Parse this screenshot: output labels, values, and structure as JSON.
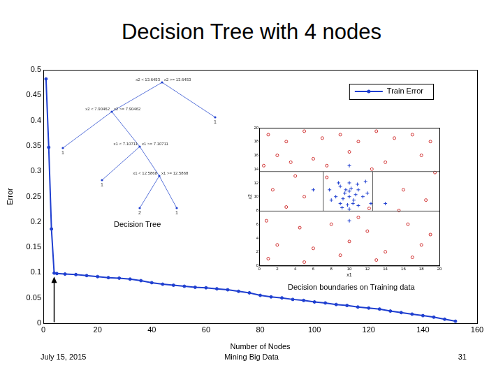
{
  "slide": {
    "title": "Decision Tree with 4 nodes",
    "footer": {
      "date": "July 15, 2015",
      "center": "Mining Big Data",
      "page": "31"
    }
  },
  "chart_data": [
    {
      "type": "line",
      "x_label": "Number of Nodes",
      "y_label": "Error",
      "x": [
        1,
        2,
        3,
        4,
        5,
        8,
        12,
        16,
        20,
        24,
        28,
        32,
        36,
        40,
        44,
        48,
        52,
        56,
        60,
        64,
        68,
        72,
        76,
        80,
        84,
        88,
        92,
        96,
        100,
        104,
        108,
        112,
        116,
        120,
        124,
        128,
        132,
        136,
        140,
        144,
        148,
        152
      ],
      "series": [
        {
          "name": "Train Error",
          "color": "#1f3fd0",
          "marker": "circle",
          "line_style": "solid",
          "values": [
            0.482,
            0.347,
            0.186,
            0.099,
            0.098,
            0.097,
            0.096,
            0.094,
            0.092,
            0.09,
            0.089,
            0.087,
            0.084,
            0.08,
            0.077,
            0.075,
            0.073,
            0.071,
            0.07,
            0.068,
            0.066,
            0.063,
            0.06,
            0.055,
            0.052,
            0.05,
            0.047,
            0.045,
            0.042,
            0.04,
            0.037,
            0.035,
            0.032,
            0.03,
            0.028,
            0.024,
            0.021,
            0.018,
            0.015,
            0.012,
            0.008,
            0.004
          ]
        }
      ],
      "xlim": [
        0,
        160
      ],
      "xticks": [
        0,
        20,
        40,
        60,
        80,
        100,
        120,
        140,
        160
      ],
      "ylim": [
        0,
        0.5
      ],
      "yticks": [
        0,
        0.05,
        0.1,
        0.15,
        0.2,
        0.25,
        0.3,
        0.35,
        0.4,
        0.45,
        0.5
      ],
      "grid": false,
      "legend": "upper right",
      "arrow": {
        "x": 4,
        "y_from": 0.002,
        "y_to": 0.092
      }
    },
    {
      "type": "scatter",
      "x_label": "x1",
      "y_label": "x2",
      "annotation": "Decision boundaries on Training data",
      "xlim": [
        0,
        20
      ],
      "xticks": [
        0,
        2,
        4,
        6,
        8,
        10,
        12,
        14,
        16,
        18,
        20
      ],
      "ylim": [
        0,
        20
      ],
      "yticks": [
        0,
        2,
        4,
        6,
        8,
        10,
        12,
        14,
        16,
        18,
        20
      ],
      "grid": false,
      "series": [
        {
          "color": "#d03030",
          "marker": "circle",
          "points": [
            [
              1,
              19
            ],
            [
              3,
              18
            ],
            [
              5,
              19.5
            ],
            [
              7,
              18.5
            ],
            [
              9,
              19
            ],
            [
              11,
              18
            ],
            [
              13,
              19.5
            ],
            [
              15,
              18.5
            ],
            [
              17,
              19
            ],
            [
              19,
              18
            ],
            [
              2,
              16
            ],
            [
              6,
              15.5
            ],
            [
              10,
              16.5
            ],
            [
              14,
              15
            ],
            [
              18,
              16
            ],
            [
              0.5,
              14.5
            ],
            [
              4,
              13
            ],
            [
              19.5,
              13.5
            ],
            [
              1.5,
              11
            ],
            [
              5,
              10
            ],
            [
              16,
              11
            ],
            [
              18.5,
              9.5
            ],
            [
              3,
              8.5
            ],
            [
              15.5,
              8
            ],
            [
              0.8,
              6.5
            ],
            [
              4.5,
              5.5
            ],
            [
              8,
              6
            ],
            [
              12,
              5
            ],
            [
              16.5,
              6
            ],
            [
              19,
              4.5
            ],
            [
              2,
              3
            ],
            [
              6,
              2.5
            ],
            [
              10,
              3.5
            ],
            [
              14,
              2
            ],
            [
              18,
              3
            ],
            [
              1,
              1
            ],
            [
              5,
              0.5
            ],
            [
              9,
              1.5
            ],
            [
              13,
              0.8
            ],
            [
              17,
              1.2
            ],
            [
              7.5,
              14.5
            ],
            [
              12.5,
              14
            ],
            [
              3.5,
              15
            ],
            [
              11,
              7
            ],
            [
              7.5,
              12.8
            ],
            [
              12.2,
              8.3
            ]
          ]
        },
        {
          "color": "#1f3fd0",
          "marker": "cross",
          "points": [
            [
              10,
              10
            ],
            [
              9.5,
              10.5
            ],
            [
              10.5,
              9.5
            ],
            [
              9,
              9
            ],
            [
              11,
              11
            ],
            [
              10.2,
              11.2
            ],
            [
              9.8,
              8.8
            ],
            [
              8.5,
              10
            ],
            [
              11.5,
              10
            ],
            [
              10,
              12
            ],
            [
              10,
              8.2
            ],
            [
              9,
              11.5
            ],
            [
              11,
              8.7
            ],
            [
              8,
              9.5
            ],
            [
              12,
              10.5
            ],
            [
              9.3,
              9.7
            ],
            [
              10.7,
              10.3
            ],
            [
              10.4,
              9
            ],
            [
              9.6,
              11
            ],
            [
              8.8,
              12
            ],
            [
              11.8,
              12.2
            ],
            [
              7.8,
              11
            ],
            [
              12.4,
              9
            ],
            [
              10,
              10.8
            ],
            [
              10.9,
              11.8
            ],
            [
              9.2,
              8.4
            ],
            [
              6,
              11
            ],
            [
              14,
              9
            ],
            [
              10,
              14.5
            ],
            [
              10,
              6.5
            ]
          ]
        }
      ]
    }
  ],
  "tree": {
    "annotation": "Decision Tree",
    "root": {
      "left_label": "x2 < 13.6453",
      "right_label": "x2 >= 13.6453",
      "feature": "x2",
      "threshold": 13.6453,
      "left": {
        "left_label": "x2 < 7.90462",
        "right_label": "x2 >= 7.90462",
        "feature": "x2",
        "threshold": 7.90462,
        "left": {
          "leaf": "1"
        },
        "right": {
          "left_label": "x1 < 7.10711",
          "right_label": "x1 >= 7.10711",
          "feature": "x1",
          "threshold": 7.10711,
          "left": {
            "leaf": "1"
          },
          "right": {
            "left_label": "x1 < 12.5868",
            "right_label": "x1 >= 12.5868",
            "feature": "x1",
            "threshold": 12.5868,
            "left": {
              "leaf": "2"
            },
            "right": {
              "leaf": "1"
            }
          }
        }
      },
      "right": {
        "leaf": "1"
      }
    }
  }
}
